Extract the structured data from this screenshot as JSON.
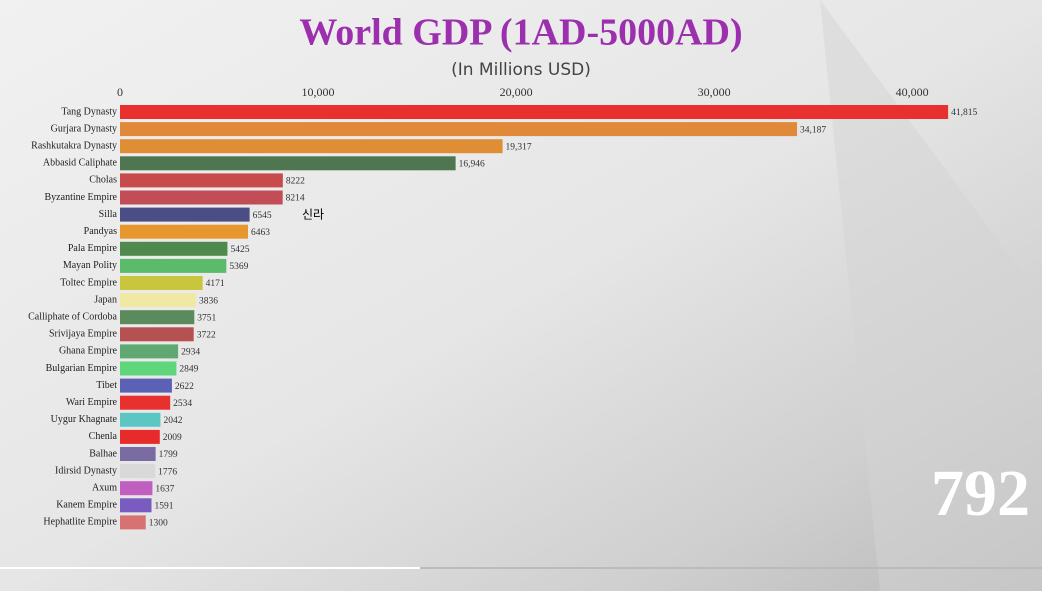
{
  "chart_data": {
    "type": "bar",
    "orientation": "horizontal",
    "title": "World GDP (1AD-5000AD)",
    "subtitle": "(In Millions USD)",
    "annotations": [
      "신라",
      "792"
    ],
    "categories": [
      "Tang Dynasty",
      "Gurjara Dynasty",
      "Rashkutakra Dynasty",
      "Abbasid Caliphate",
      "Cholas",
      "Byzantine Empire",
      "Silla",
      "Pandyas",
      "Pala Empire",
      "Mayan Polity",
      "Toltec Empire",
      "Japan",
      "Calliphate of Cordoba",
      "Srivijaya Empire",
      "Ghana Empire",
      "Bulgarian Empire",
      "Tibet",
      "Wari Empire",
      "Uygur Khagnate",
      "Chenla",
      "Balhae",
      "Idirsid Dynasty",
      "Axum",
      "Kanem Empire",
      "Hephatlite Empire"
    ],
    "values": [
      41815,
      34187,
      19317,
      16946,
      8222,
      8214,
      6545,
      6463,
      5425,
      5369,
      4171,
      3836,
      3751,
      3722,
      2934,
      2849,
      2622,
      2534,
      2042,
      2009,
      1799,
      1776,
      1637,
      1591,
      1300
    ],
    "value_labels": [
      "41,815",
      "34,187",
      "19,317",
      "16,946",
      "8222",
      "8214",
      "6545",
      "6463",
      "5425",
      "5369",
      "4171",
      "3836",
      "3751",
      "3722",
      "2934",
      "2849",
      "2622",
      "2534",
      "2042",
      "2009",
      "1799",
      "1776",
      "1637",
      "1591",
      "1300"
    ],
    "colors": [
      "#e8302e",
      "#e0893a",
      "#e08e35",
      "#4e7650",
      "#c94a4c",
      "#c24d57",
      "#4b4e84",
      "#e8972f",
      "#4f8a4c",
      "#5bbb6b",
      "#c9c53d",
      "#efe9a3",
      "#5b8a5c",
      "#b55150",
      "#60a872",
      "#5fd57c",
      "#5b62b6",
      "#e8302e",
      "#5cc6c2",
      "#e72b2b",
      "#7a6ba2",
      "#d9d9d9",
      "#c05fc0",
      "#7a5bc0",
      "#d87272"
    ],
    "xlim": [
      0,
      46000
    ],
    "xticks": [
      0,
      {
        "value": 10000,
        "label": "10,000"
      },
      {
        "value": 20000,
        "label": "20,000"
      },
      {
        "value": 30000,
        "label": "30,000"
      },
      {
        "value": 40000,
        "label": "40,000"
      }
    ]
  }
}
